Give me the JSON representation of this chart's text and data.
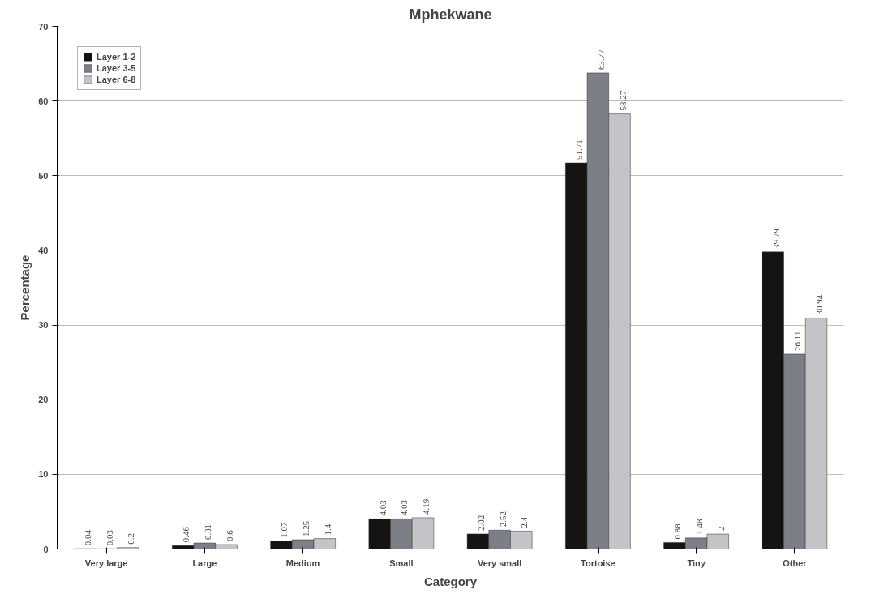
{
  "chart_data": {
    "type": "bar",
    "title": "Mphekwane",
    "xlabel": "Category",
    "ylabel": "Percentage",
    "categories": [
      "Very large",
      "Large",
      "Medium",
      "Small",
      "Very small",
      "Tortoise",
      "Tiny",
      "Other"
    ],
    "series": [
      {
        "name": "Layer 1-2",
        "color": "#141414",
        "values": [
          0.04,
          0.46,
          1.07,
          4.03,
          2.02,
          51.71,
          0.88,
          39.79
        ]
      },
      {
        "name": "Layer 3-5",
        "color": "#7d7f86",
        "values": [
          0.03,
          0.81,
          1.25,
          4.03,
          2.52,
          63.77,
          1.48,
          26.11
        ]
      },
      {
        "name": "Layer 6-8",
        "color": "#c2c4c8",
        "values": [
          0.2,
          0.6,
          1.4,
          4.19,
          2.4,
          58.27,
          2,
          30.94
        ]
      }
    ],
    "ylim": [
      0,
      70
    ],
    "yticks": [
      0,
      10,
      20,
      30,
      40,
      50,
      60,
      70
    ],
    "grid": "y",
    "legend": "top left",
    "data_labels": true
  }
}
